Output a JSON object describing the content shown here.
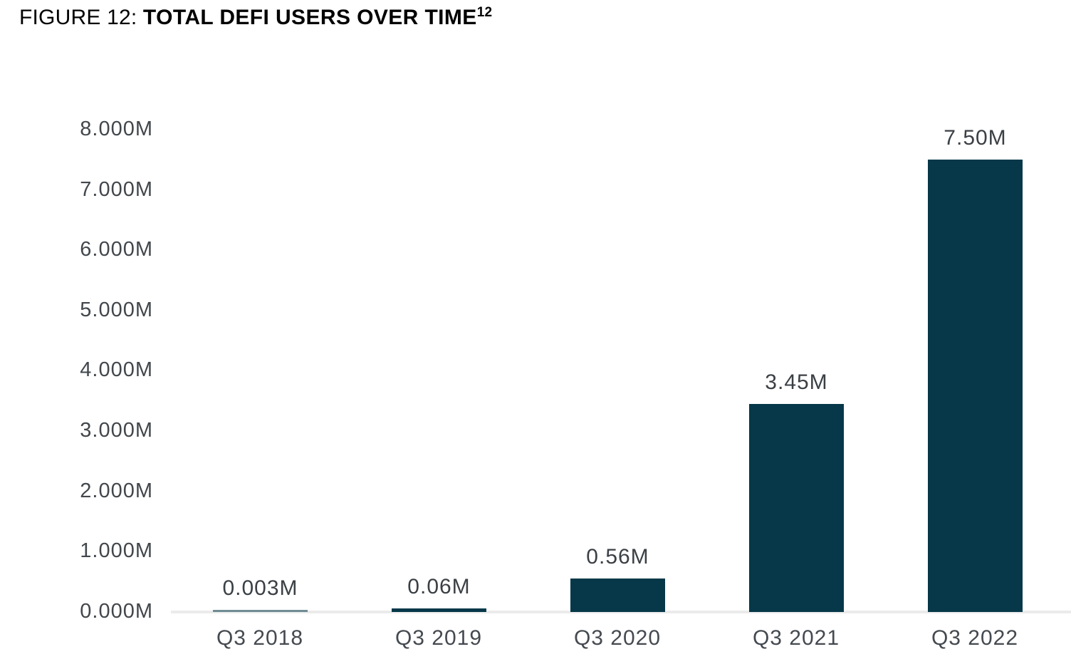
{
  "title": {
    "prefix": "FIGURE 12: ",
    "main": "TOTAL DEFI USERS OVER TIME",
    "footnote_ref": "12"
  },
  "chart_data": {
    "type": "bar",
    "title": "FIGURE 12: TOTAL DEFI USERS OVER TIME",
    "footnote_ref": "12",
    "categories": [
      "Q3 2018",
      "Q3 2019",
      "Q3 2020",
      "Q3 2021",
      "Q3 2022"
    ],
    "values": [
      0.003,
      0.06,
      0.56,
      3.45,
      7.5
    ],
    "value_labels": [
      "0.003M",
      "0.06M",
      "0.56M",
      "3.45M",
      "7.50M"
    ],
    "y_ticks": [
      "8.000M",
      "7.000M",
      "6.000M",
      "5.000M",
      "4.000M",
      "3.000M",
      "2.000M",
      "1.000M",
      "0.000M"
    ],
    "ylim": [
      0,
      8
    ],
    "xlabel": "",
    "ylabel": "",
    "bar_color": "#063849",
    "baseline_color": "#ebebeb",
    "grid": false,
    "legend": "none"
  }
}
